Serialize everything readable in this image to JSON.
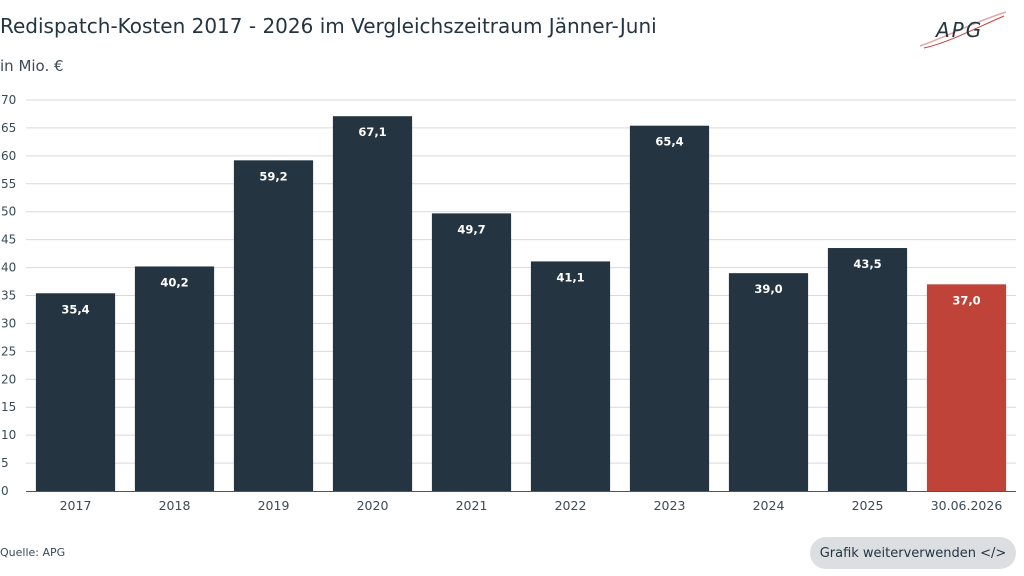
{
  "header": {
    "title": "Redispatch-Kosten 2017 - 2026 im Vergleichszeitraum Jänner-Juni",
    "unit": "in Mio. €",
    "logo_text": "APG"
  },
  "footer": {
    "source": "Quelle: APG",
    "reuse_button": "Grafik weiterverwenden </>"
  },
  "colors": {
    "bar": "#243441",
    "highlight": "#c0433a",
    "grid": "#d9d9d9",
    "axis": "#555555"
  },
  "chart_data": {
    "type": "bar",
    "categories": [
      "2017",
      "2018",
      "2019",
      "2020",
      "2021",
      "2022",
      "2023",
      "2024",
      "2025",
      "30.06.2026"
    ],
    "values": [
      35.4,
      40.2,
      59.2,
      67.1,
      49.7,
      41.1,
      65.4,
      39.0,
      43.5,
      37.0
    ],
    "value_labels": [
      "35,4",
      "40,2",
      "59,2",
      "67,1",
      "49,7",
      "41,1",
      "65,4",
      "39,0",
      "43,5",
      "37,0"
    ],
    "highlight_index": 9,
    "ylim": [
      0,
      70
    ],
    "yticks": [
      0,
      5,
      10,
      15,
      20,
      25,
      30,
      35,
      40,
      45,
      50,
      55,
      60,
      65,
      70
    ],
    "grid": true,
    "legend": false
  }
}
